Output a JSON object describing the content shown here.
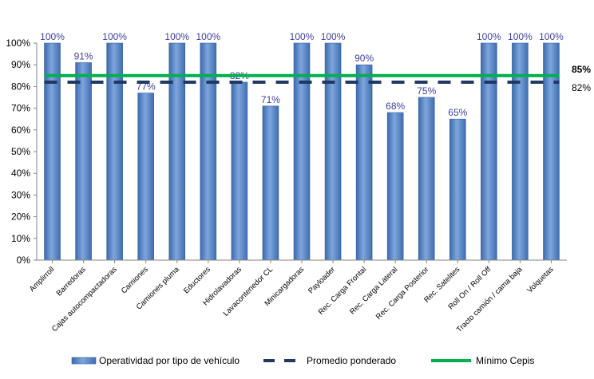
{
  "chart_data": {
    "type": "bar",
    "categories": [
      "Amplirroll",
      "Barredoras",
      "Cajas autocompactadoras",
      "Camiones",
      "Camiones pluma",
      "Eductores",
      "Hidrolavadoras",
      "Lavacontenedor CL",
      "Minicargadoras",
      "Payloader",
      "Rec. Carga Frontal",
      "Rec. Carga Lateral",
      "Rec. Carga Posterior",
      "Rec. Satelites",
      "Roll On / Roll Off",
      "Tracto camión / cama baja",
      "Volquetas"
    ],
    "series": [
      {
        "name": "Operatividad por tipo de vehículo",
        "values": [
          100,
          91,
          100,
          77,
          100,
          100,
          82,
          71,
          100,
          100,
          90,
          68,
          75,
          65,
          100,
          100,
          100
        ],
        "color": "#4F81BD"
      }
    ],
    "data_labels": [
      "100%",
      "91%",
      "100%",
      "77%",
      "100%",
      "100%",
      "82%",
      "71%",
      "100%",
      "100%",
      "90%",
      "68%",
      "75%",
      "65%",
      "100%",
      "100%",
      "100%"
    ],
    "reference_lines": [
      {
        "name": "Promedio ponderado",
        "value": 82,
        "label": "82%",
        "style": "dashed",
        "color": "#1F3864"
      },
      {
        "name": "Mínimo Cepis",
        "value": 85,
        "label": "85%",
        "style": "solid",
        "color": "#00B050"
      }
    ],
    "yticks": [
      "0%",
      "10%",
      "20%",
      "30%",
      "40%",
      "50%",
      "60%",
      "70%",
      "80%",
      "90%",
      "100%"
    ],
    "ylim": [
      0,
      100
    ],
    "grid": false,
    "legend_position": "bottom"
  }
}
